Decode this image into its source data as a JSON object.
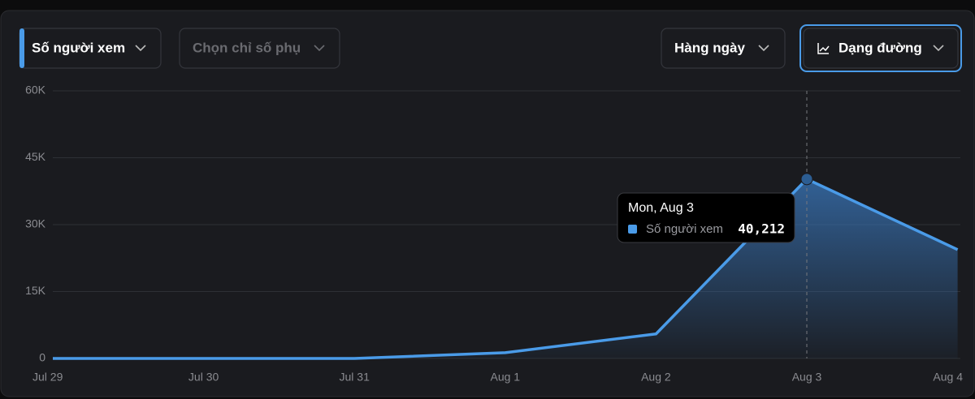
{
  "controls": {
    "metric": "Số người xem",
    "secondary_metric": "Chọn chỉ số phụ",
    "period": "Hàng ngày",
    "view": "Dạng đường"
  },
  "chart_data": {
    "type": "line",
    "categories": [
      "Jul 29",
      "Jul 30",
      "Jul 31",
      "Aug 1",
      "Aug 2",
      "Aug 3",
      "Aug 4"
    ],
    "series": [
      {
        "name": "Số người xem",
        "color": "#4a9be8",
        "values": [
          0,
          0,
          0,
          1300,
          5500,
          40212,
          24400
        ],
        "value_labels": [
          null,
          null,
          null,
          null,
          null,
          "40,212",
          null
        ]
      }
    ],
    "ylim": [
      0,
      60000
    ],
    "yticks": [
      0,
      {
        "value": 15000,
        "label": "15K"
      },
      {
        "value": 30000,
        "label": "30K"
      },
      {
        "value": 45000,
        "label": "45K"
      },
      {
        "value": 60000,
        "label": "60K"
      }
    ],
    "grid": true,
    "tooltip": {
      "title": "Mon, Aug 3"
    }
  }
}
